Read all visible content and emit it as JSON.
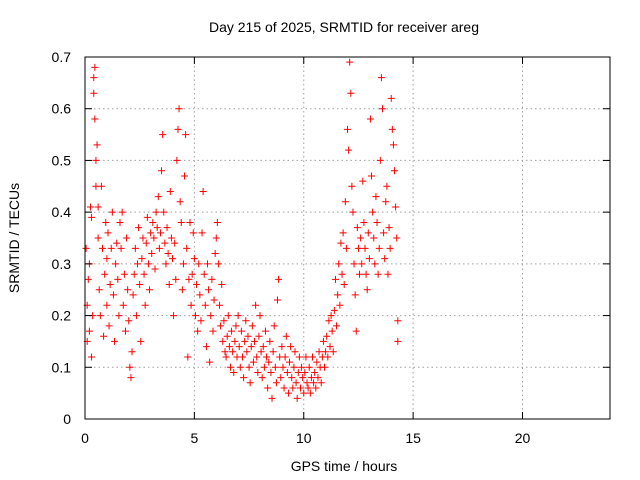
{
  "chart_data": {
    "type": "scatter",
    "title": "Day 215 of 2025, SRMTID for receiver areg",
    "xlabel": "GPS time / hours",
    "ylabel": "SRMTID / TECUs",
    "xlim": [
      0,
      24
    ],
    "ylim": [
      0,
      0.7
    ],
    "xticks": [
      0,
      5,
      10,
      15,
      20
    ],
    "xtick_labels": [
      "0",
      "5",
      "10",
      "15",
      "20"
    ],
    "yticks": [
      0,
      0.1,
      0.2,
      0.3,
      0.4,
      0.5,
      0.6,
      0.7
    ],
    "ytick_labels": [
      "0",
      "0.1",
      "0.2",
      "0.3",
      "0.4",
      "0.5",
      "0.6",
      "0.7"
    ],
    "grid": true,
    "marker": "plus",
    "marker_color": "#ff0000",
    "series": [
      {
        "name": "SRMTID",
        "points": [
          [
            0.05,
            0.33
          ],
          [
            0.1,
            0.22
          ],
          [
            0.1,
            0.15
          ],
          [
            0.15,
            0.27
          ],
          [
            0.2,
            0.3
          ],
          [
            0.2,
            0.17
          ],
          [
            0.25,
            0.41
          ],
          [
            0.3,
            0.39
          ],
          [
            0.3,
            0.12
          ],
          [
            0.35,
            0.2
          ],
          [
            0.4,
            0.66
          ],
          [
            0.4,
            0.63
          ],
          [
            0.45,
            0.68
          ],
          [
            0.45,
            0.58
          ],
          [
            0.5,
            0.5
          ],
          [
            0.5,
            0.45
          ],
          [
            0.55,
            0.53
          ],
          [
            0.6,
            0.41
          ],
          [
            0.6,
            0.35
          ],
          [
            0.65,
            0.25
          ],
          [
            0.7,
            0.2
          ],
          [
            0.75,
            0.45
          ],
          [
            0.8,
            0.33
          ],
          [
            0.85,
            0.16
          ],
          [
            0.9,
            0.28
          ],
          [
            0.95,
            0.38
          ],
          [
            1.0,
            0.22
          ],
          [
            1.0,
            0.31
          ],
          [
            1.05,
            0.36
          ],
          [
            1.1,
            0.18
          ],
          [
            1.15,
            0.26
          ],
          [
            1.2,
            0.33
          ],
          [
            1.25,
            0.4
          ],
          [
            1.3,
            0.24
          ],
          [
            1.35,
            0.15
          ],
          [
            1.4,
            0.3
          ],
          [
            1.45,
            0.34
          ],
          [
            1.5,
            0.27
          ],
          [
            1.55,
            0.2
          ],
          [
            1.6,
            0.38
          ],
          [
            1.65,
            0.33
          ],
          [
            1.7,
            0.4
          ],
          [
            1.75,
            0.22
          ],
          [
            1.8,
            0.28
          ],
          [
            1.85,
            0.17
          ],
          [
            1.9,
            0.35
          ],
          [
            1.95,
            0.25
          ],
          [
            2.0,
            0.19
          ],
          [
            2.05,
            0.1
          ],
          [
            2.1,
            0.08
          ],
          [
            2.15,
            0.13
          ],
          [
            2.2,
            0.24
          ],
          [
            2.25,
            0.28
          ],
          [
            2.3,
            0.33
          ],
          [
            2.35,
            0.2
          ],
          [
            2.4,
            0.3
          ],
          [
            2.45,
            0.37
          ],
          [
            2.5,
            0.26
          ],
          [
            2.55,
            0.15
          ],
          [
            2.6,
            0.31
          ],
          [
            2.65,
            0.35
          ],
          [
            2.7,
            0.28
          ],
          [
            2.75,
            0.22
          ],
          [
            2.8,
            0.34
          ],
          [
            2.85,
            0.39
          ],
          [
            2.9,
            0.3
          ],
          [
            2.95,
            0.25
          ],
          [
            3.0,
            0.36
          ],
          [
            3.05,
            0.32
          ],
          [
            3.1,
            0.38
          ],
          [
            3.15,
            0.35
          ],
          [
            3.2,
            0.29
          ],
          [
            3.25,
            0.4
          ],
          [
            3.3,
            0.37
          ],
          [
            3.35,
            0.43
          ],
          [
            3.4,
            0.33
          ],
          [
            3.45,
            0.36
          ],
          [
            3.5,
            0.48
          ],
          [
            3.55,
            0.55
          ],
          [
            3.6,
            0.4
          ],
          [
            3.65,
            0.34
          ],
          [
            3.7,
            0.3
          ],
          [
            3.75,
            0.37
          ],
          [
            3.8,
            0.32
          ],
          [
            3.85,
            0.26
          ],
          [
            3.9,
            0.44
          ],
          [
            3.95,
            0.35
          ],
          [
            4.0,
            0.31
          ],
          [
            4.05,
            0.2
          ],
          [
            4.1,
            0.34
          ],
          [
            4.15,
            0.27
          ],
          [
            4.2,
            0.5
          ],
          [
            4.25,
            0.56
          ],
          [
            4.3,
            0.6
          ],
          [
            4.35,
            0.42
          ],
          [
            4.4,
            0.38
          ],
          [
            4.45,
            0.25
          ],
          [
            4.5,
            0.3
          ],
          [
            4.55,
            0.47
          ],
          [
            4.6,
            0.55
          ],
          [
            4.65,
            0.33
          ],
          [
            4.7,
            0.12
          ],
          [
            4.75,
            0.27
          ],
          [
            4.8,
            0.38
          ],
          [
            4.85,
            0.22
          ],
          [
            4.9,
            0.28
          ],
          [
            4.95,
            0.36
          ],
          [
            5.0,
            0.31
          ],
          [
            5.05,
            0.2
          ],
          [
            5.1,
            0.26
          ],
          [
            5.15,
            0.17
          ],
          [
            5.2,
            0.3
          ],
          [
            5.25,
            0.24
          ],
          [
            5.3,
            0.19
          ],
          [
            5.35,
            0.36
          ],
          [
            5.4,
            0.44
          ],
          [
            5.45,
            0.28
          ],
          [
            5.5,
            0.22
          ],
          [
            5.55,
            0.14
          ],
          [
            5.6,
            0.3
          ],
          [
            5.65,
            0.25
          ],
          [
            5.7,
            0.11
          ],
          [
            5.75,
            0.2
          ],
          [
            5.8,
            0.27
          ],
          [
            5.85,
            0.17
          ],
          [
            5.9,
            0.23
          ],
          [
            5.95,
            0.32
          ],
          [
            6.0,
            0.35
          ],
          [
            6.05,
            0.38
          ],
          [
            6.1,
            0.3
          ],
          [
            6.15,
            0.22
          ],
          [
            6.2,
            0.18
          ],
          [
            6.25,
            0.26
          ],
          [
            6.3,
            0.15
          ],
          [
            6.35,
            0.19
          ],
          [
            6.4,
            0.13
          ],
          [
            6.45,
            0.12
          ],
          [
            6.5,
            0.16
          ],
          [
            6.55,
            0.2
          ],
          [
            6.6,
            0.14
          ],
          [
            6.65,
            0.1
          ],
          [
            6.7,
            0.17
          ],
          [
            6.75,
            0.13
          ],
          [
            6.8,
            0.09
          ],
          [
            6.85,
            0.15
          ],
          [
            6.9,
            0.18
          ],
          [
            6.95,
            0.12
          ],
          [
            7.0,
            0.2
          ],
          [
            7.05,
            0.14
          ],
          [
            7.1,
            0.1
          ],
          [
            7.15,
            0.17
          ],
          [
            7.2,
            0.12
          ],
          [
            7.25,
            0.08
          ],
          [
            7.3,
            0.15
          ],
          [
            7.35,
            0.19
          ],
          [
            7.4,
            0.13
          ],
          [
            7.45,
            0.16
          ],
          [
            7.5,
            0.1
          ],
          [
            7.55,
            0.07
          ],
          [
            7.6,
            0.14
          ],
          [
            7.65,
            0.18
          ],
          [
            7.7,
            0.11
          ],
          [
            7.75,
            0.15
          ],
          [
            7.8,
            0.22
          ],
          [
            7.85,
            0.12
          ],
          [
            7.9,
            0.09
          ],
          [
            7.95,
            0.16
          ],
          [
            8.0,
            0.2
          ],
          [
            8.05,
            0.13
          ],
          [
            8.1,
            0.08
          ],
          [
            8.15,
            0.14
          ],
          [
            8.2,
            0.1
          ],
          [
            8.25,
            0.17
          ],
          [
            8.3,
            0.12
          ],
          [
            8.35,
            0.06
          ],
          [
            8.4,
            0.11
          ],
          [
            8.45,
            0.15
          ],
          [
            8.5,
            0.09
          ],
          [
            8.55,
            0.04
          ],
          [
            8.6,
            0.13
          ],
          [
            8.65,
            0.18
          ],
          [
            8.7,
            0.1
          ],
          [
            8.75,
            0.07
          ],
          [
            8.8,
            0.23
          ],
          [
            8.85,
            0.27
          ],
          [
            8.9,
            0.12
          ],
          [
            8.95,
            0.08
          ],
          [
            9.0,
            0.14
          ],
          [
            9.05,
            0.1
          ],
          [
            9.1,
            0.06
          ],
          [
            9.15,
            0.12
          ],
          [
            9.2,
            0.16
          ],
          [
            9.25,
            0.09
          ],
          [
            9.3,
            0.05
          ],
          [
            9.35,
            0.11
          ],
          [
            9.4,
            0.14
          ],
          [
            9.45,
            0.08
          ],
          [
            9.5,
            0.06
          ],
          [
            9.55,
            0.1
          ],
          [
            9.6,
            0.13
          ],
          [
            9.65,
            0.07
          ],
          [
            9.7,
            0.04
          ],
          [
            9.75,
            0.09
          ],
          [
            9.8,
            0.12
          ],
          [
            9.85,
            0.06
          ],
          [
            9.9,
            0.1
          ],
          [
            9.95,
            0.08
          ],
          [
            10.0,
            0.05
          ],
          [
            10.05,
            0.09
          ],
          [
            10.1,
            0.12
          ],
          [
            10.15,
            0.07
          ],
          [
            10.2,
            0.06
          ],
          [
            10.25,
            0.1
          ],
          [
            10.3,
            0.05
          ],
          [
            10.35,
            0.08
          ],
          [
            10.4,
            0.12
          ],
          [
            10.45,
            0.07
          ],
          [
            10.5,
            0.09
          ],
          [
            10.55,
            0.06
          ],
          [
            10.6,
            0.11
          ],
          [
            10.65,
            0.08
          ],
          [
            10.7,
            0.13
          ],
          [
            10.75,
            0.1
          ],
          [
            10.8,
            0.07
          ],
          [
            10.85,
            0.12
          ],
          [
            10.9,
            0.15
          ],
          [
            10.95,
            0.1
          ],
          [
            11.0,
            0.13
          ],
          [
            11.05,
            0.16
          ],
          [
            11.1,
            0.12
          ],
          [
            11.15,
            0.19
          ],
          [
            11.2,
            0.14
          ],
          [
            11.25,
            0.2
          ],
          [
            11.3,
            0.17
          ],
          [
            11.35,
            0.13
          ],
          [
            11.4,
            0.21
          ],
          [
            11.45,
            0.27
          ],
          [
            11.5,
            0.18
          ],
          [
            11.55,
            0.24
          ],
          [
            11.6,
            0.3
          ],
          [
            11.65,
            0.22
          ],
          [
            11.7,
            0.34
          ],
          [
            11.75,
            0.28
          ],
          [
            11.8,
            0.36
          ],
          [
            11.85,
            0.26
          ],
          [
            11.9,
            0.42
          ],
          [
            11.95,
            0.33
          ],
          [
            12.0,
            0.56
          ],
          [
            12.05,
            0.52
          ],
          [
            12.1,
            0.69
          ],
          [
            12.15,
            0.63
          ],
          [
            12.2,
            0.45
          ],
          [
            12.25,
            0.4
          ],
          [
            12.3,
            0.3
          ],
          [
            12.35,
            0.24
          ],
          [
            12.4,
            0.17
          ],
          [
            12.45,
            0.37
          ],
          [
            12.5,
            0.33
          ],
          [
            12.55,
            0.28
          ],
          [
            12.6,
            0.35
          ],
          [
            12.65,
            0.3
          ],
          [
            12.7,
            0.46
          ],
          [
            12.75,
            0.38
          ],
          [
            12.8,
            0.33
          ],
          [
            12.85,
            0.28
          ],
          [
            12.9,
            0.25
          ],
          [
            12.95,
            0.36
          ],
          [
            13.0,
            0.31
          ],
          [
            13.05,
            0.58
          ],
          [
            13.1,
            0.47
          ],
          [
            13.15,
            0.4
          ],
          [
            13.2,
            0.35
          ],
          [
            13.25,
            0.3
          ],
          [
            13.3,
            0.43
          ],
          [
            13.35,
            0.38
          ],
          [
            13.4,
            0.28
          ],
          [
            13.45,
            0.33
          ],
          [
            13.5,
            0.5
          ],
          [
            13.55,
            0.66
          ],
          [
            13.6,
            0.6
          ],
          [
            13.65,
            0.36
          ],
          [
            13.7,
            0.31
          ],
          [
            13.75,
            0.42
          ],
          [
            13.8,
            0.45
          ],
          [
            13.85,
            0.28
          ],
          [
            13.9,
            0.37
          ],
          [
            13.95,
            0.33
          ],
          [
            14.0,
            0.62
          ],
          [
            14.05,
            0.56
          ],
          [
            14.1,
            0.53
          ],
          [
            14.15,
            0.48
          ],
          [
            14.2,
            0.41
          ],
          [
            14.25,
            0.35
          ],
          [
            14.3,
            0.19
          ],
          [
            14.3,
            0.15
          ]
        ]
      }
    ]
  }
}
